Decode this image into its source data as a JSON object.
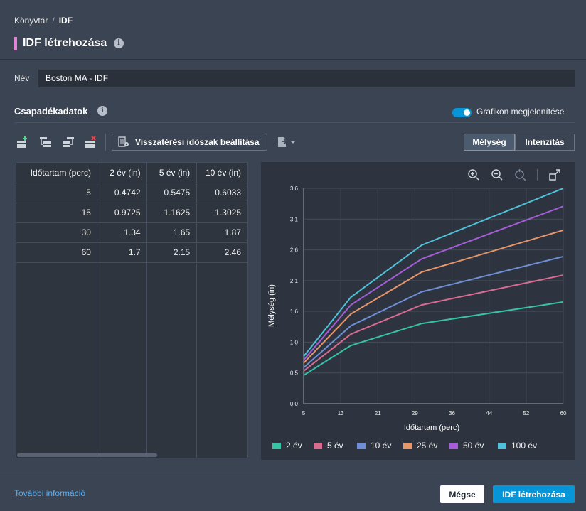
{
  "breadcrumb": {
    "parent": "Könyvtár",
    "separator": "/",
    "current": "IDF"
  },
  "dialog": {
    "title": "IDF létrehozása"
  },
  "name_field": {
    "label": "Név",
    "value": "Boston MA - IDF"
  },
  "precip": {
    "title": "Csapadékadatok",
    "show_graph_label": "Grafikon megjelenítése",
    "show_graph_on": true
  },
  "toolbar": {
    "return_period_button": "Visszatérési időszak beállítása",
    "seg_depth": "Mélység",
    "seg_intensity": "Intenzitás"
  },
  "table": {
    "headers": [
      "Időtartam (perc)",
      "2 év (in)",
      "5 év (in)",
      "10 év (in)"
    ],
    "rows": [
      [
        "5",
        "0.4742",
        "0.5475",
        "0.6033"
      ],
      [
        "15",
        "0.9725",
        "1.1625",
        "1.3025"
      ],
      [
        "30",
        "1.34",
        "1.65",
        "1.87"
      ],
      [
        "60",
        "1.7",
        "2.15",
        "2.46"
      ]
    ]
  },
  "chart_data": {
    "type": "line",
    "xlabel": "Időtartam (perc)",
    "ylabel": "Mélység (in)",
    "xlim": [
      5,
      60
    ],
    "ylim": [
      0,
      3.6
    ],
    "x_ticks": [
      "5",
      "13",
      "21",
      "29",
      "36",
      "44",
      "52",
      "60"
    ],
    "y_ticks": [
      "0.0",
      "0.5",
      "1.0",
      "1.6",
      "2.1",
      "2.6",
      "3.1",
      "3.6"
    ],
    "x": [
      5,
      15,
      30,
      60
    ],
    "series": [
      {
        "name": "2 év",
        "color": "#36c3a6",
        "values": [
          0.4742,
          0.9725,
          1.34,
          1.7
        ]
      },
      {
        "name": "5 év",
        "color": "#d96b91",
        "values": [
          0.5475,
          1.1625,
          1.65,
          2.15
        ]
      },
      {
        "name": "10 év",
        "color": "#6e8fd6",
        "values": [
          0.6033,
          1.3025,
          1.87,
          2.46
        ]
      },
      {
        "name": "25 év",
        "color": "#e8956a",
        "values": [
          0.68,
          1.5,
          2.2,
          2.9
        ]
      },
      {
        "name": "50 év",
        "color": "#a55ed8",
        "values": [
          0.73,
          1.65,
          2.42,
          3.3
        ]
      },
      {
        "name": "100 év",
        "color": "#4fc2d9",
        "values": [
          0.79,
          1.78,
          2.65,
          3.6
        ]
      }
    ],
    "grid": true,
    "legend": "bottom"
  },
  "footer": {
    "more_info": "További információ",
    "cancel": "Mégse",
    "create": "IDF létrehozása"
  }
}
